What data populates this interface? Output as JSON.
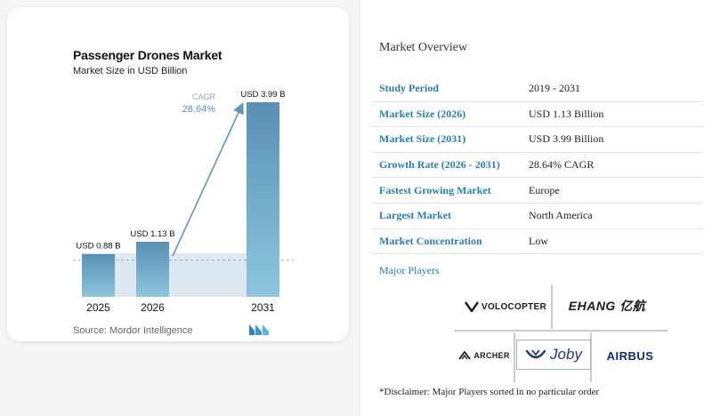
{
  "chart_title": "Passenger Drones Market",
  "chart_subtitle": "Market Size in USD Billion",
  "chart_data": {
    "type": "bar",
    "categories": [
      "2025",
      "2026",
      "2031"
    ],
    "values": [
      0.88,
      1.13,
      3.99
    ],
    "value_labels": [
      "USD 0.88 B",
      "USD 1.13 B",
      "USD 3.99 B"
    ],
    "cagr_label": "CAGR",
    "cagr_value": "28.64%",
    "title": "Passenger Drones Market",
    "ylabel": "Market Size in USD Billion"
  },
  "colors": {
    "bar_dark": "#5a8fb5",
    "bar_light": "#8ec6dd",
    "arrow": "#5d96b6",
    "region": "#dde8f1",
    "accent": "#2a7fa6"
  },
  "source": "Source: Mordor Intelligence",
  "brand_icon": "mordor-intelligence-logo",
  "overview": {
    "title": "Market Overview",
    "rows": [
      {
        "key": "Study Period",
        "value": "2019 - 2031"
      },
      {
        "key": "Market Size (2026)",
        "value": "USD 1.13 Billion"
      },
      {
        "key": "Market Size (2031)",
        "value": "USD 3.99 Billion"
      },
      {
        "key": "Growth Rate (2026 - 2031)",
        "value": "28.64% CAGR"
      },
      {
        "key": "Fastest Growing Market",
        "value": "Europe"
      },
      {
        "key": "Largest Market",
        "value": "North America"
      },
      {
        "key": "Market Concentration",
        "value": "Low"
      }
    ]
  },
  "players": {
    "title": "Major Players",
    "logos": [
      "VOLOCOPTER",
      "EHANG 亿航",
      "ARCHER",
      "Joby",
      "AIRBUS"
    ]
  },
  "disclaimer": "*Disclaimer: Major Players sorted in no particular order"
}
